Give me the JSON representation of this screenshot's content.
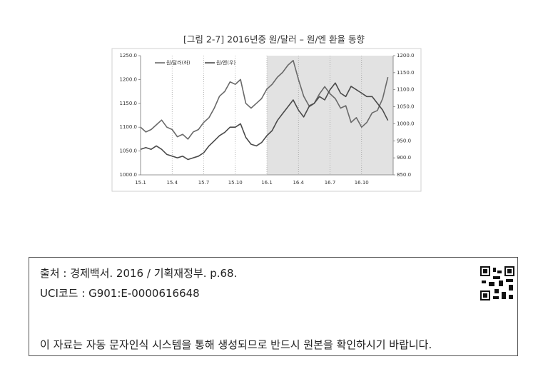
{
  "chart_data": {
    "type": "line",
    "title": "[그림 2-7] 2016년중 원/달러 – 원/엔 환율 동향",
    "x": [
      0,
      0.5,
      1,
      1.5,
      2,
      2.5,
      3,
      3.5,
      4,
      4.5,
      5,
      5.5,
      6,
      6.5,
      7,
      7.5,
      8,
      8.5,
      9,
      9.5,
      10,
      10.5,
      11,
      11.5,
      12,
      12.5,
      13,
      13.5,
      14,
      14.5,
      15,
      15.5,
      16,
      16.5,
      17,
      17.5,
      18,
      18.5,
      19,
      19.5,
      20,
      20.5,
      21,
      21.5,
      22,
      22.5,
      23,
      23.5
    ],
    "series": [
      {
        "name": "원/달러(좌)",
        "color": "#6a6a6a",
        "values": [
          1100,
          1090,
          1095,
          1105,
          1115,
          1100,
          1095,
          1080,
          1085,
          1075,
          1090,
          1095,
          1110,
          1120,
          1140,
          1165,
          1175,
          1195,
          1190,
          1200,
          1150,
          1140,
          1150,
          1160,
          1180,
          1190,
          1205,
          1215,
          1230,
          1240,
          1200,
          1165,
          1145,
          1150,
          1170,
          1185,
          1170,
          1160,
          1140,
          1145,
          1110,
          1120,
          1100,
          1110,
          1130,
          1135,
          1160,
          1205
        ]
      },
      {
        "name": "원/엔(우)",
        "color": "#4a4a4a",
        "axis": "y2",
        "values": [
          925,
          930,
          925,
          935,
          925,
          910,
          905,
          900,
          905,
          895,
          900,
          905,
          915,
          935,
          950,
          965,
          975,
          990,
          990,
          1000,
          960,
          940,
          935,
          945,
          965,
          980,
          1010,
          1030,
          1050,
          1070,
          1040,
          1020,
          1050,
          1060,
          1080,
          1070,
          1100,
          1120,
          1090,
          1080,
          1110,
          1100,
          1090,
          1080,
          1080,
          1060,
          1040,
          1010
        ]
      }
    ],
    "xlim": [
      0,
      24
    ],
    "xticks": [
      {
        "value": 0,
        "label": "15.1"
      },
      {
        "value": 3,
        "label": "15.4"
      },
      {
        "value": 6,
        "label": "15.7"
      },
      {
        "value": 9,
        "label": "15.10"
      },
      {
        "value": 12,
        "label": "16.1"
      },
      {
        "value": 15,
        "label": "16.4"
      },
      {
        "value": 18,
        "label": "16.7"
      },
      {
        "value": 21,
        "label": "16.10"
      }
    ],
    "ylim": [
      1000,
      1250
    ],
    "yticks": [
      {
        "value": 1000,
        "label": "1000.0"
      },
      {
        "value": 1050,
        "label": "1050.0"
      },
      {
        "value": 1100,
        "label": "1100.0"
      },
      {
        "value": 1150,
        "label": "1150.0"
      },
      {
        "value": 1200,
        "label": "1200.0"
      },
      {
        "value": 1250,
        "label": "1250.0"
      }
    ],
    "y2lim": [
      850,
      1200
    ],
    "y2ticks": [
      {
        "value": 850,
        "label": "850.0"
      },
      {
        "value": 900,
        "label": "900.0"
      },
      {
        "value": 950,
        "label": "950.0"
      },
      {
        "value": 1000,
        "label": "1000.0"
      },
      {
        "value": 1050,
        "label": "1050.0"
      },
      {
        "value": 1100,
        "label": "1100.0"
      },
      {
        "value": 1150,
        "label": "1150.0"
      },
      {
        "value": 1200,
        "label": "1200.0"
      }
    ],
    "legend": "top-left"
  },
  "footer": {
    "source": "출처 : 경제백서. 2016 / 기획재정부. p.68.",
    "uci": "UCI코드 : G901:E-0000616648",
    "notice": "이 자료는 자동 문자인식 시스템을 통해 생성되므로 반드시 원본을 확인하시기 바랍니다."
  }
}
